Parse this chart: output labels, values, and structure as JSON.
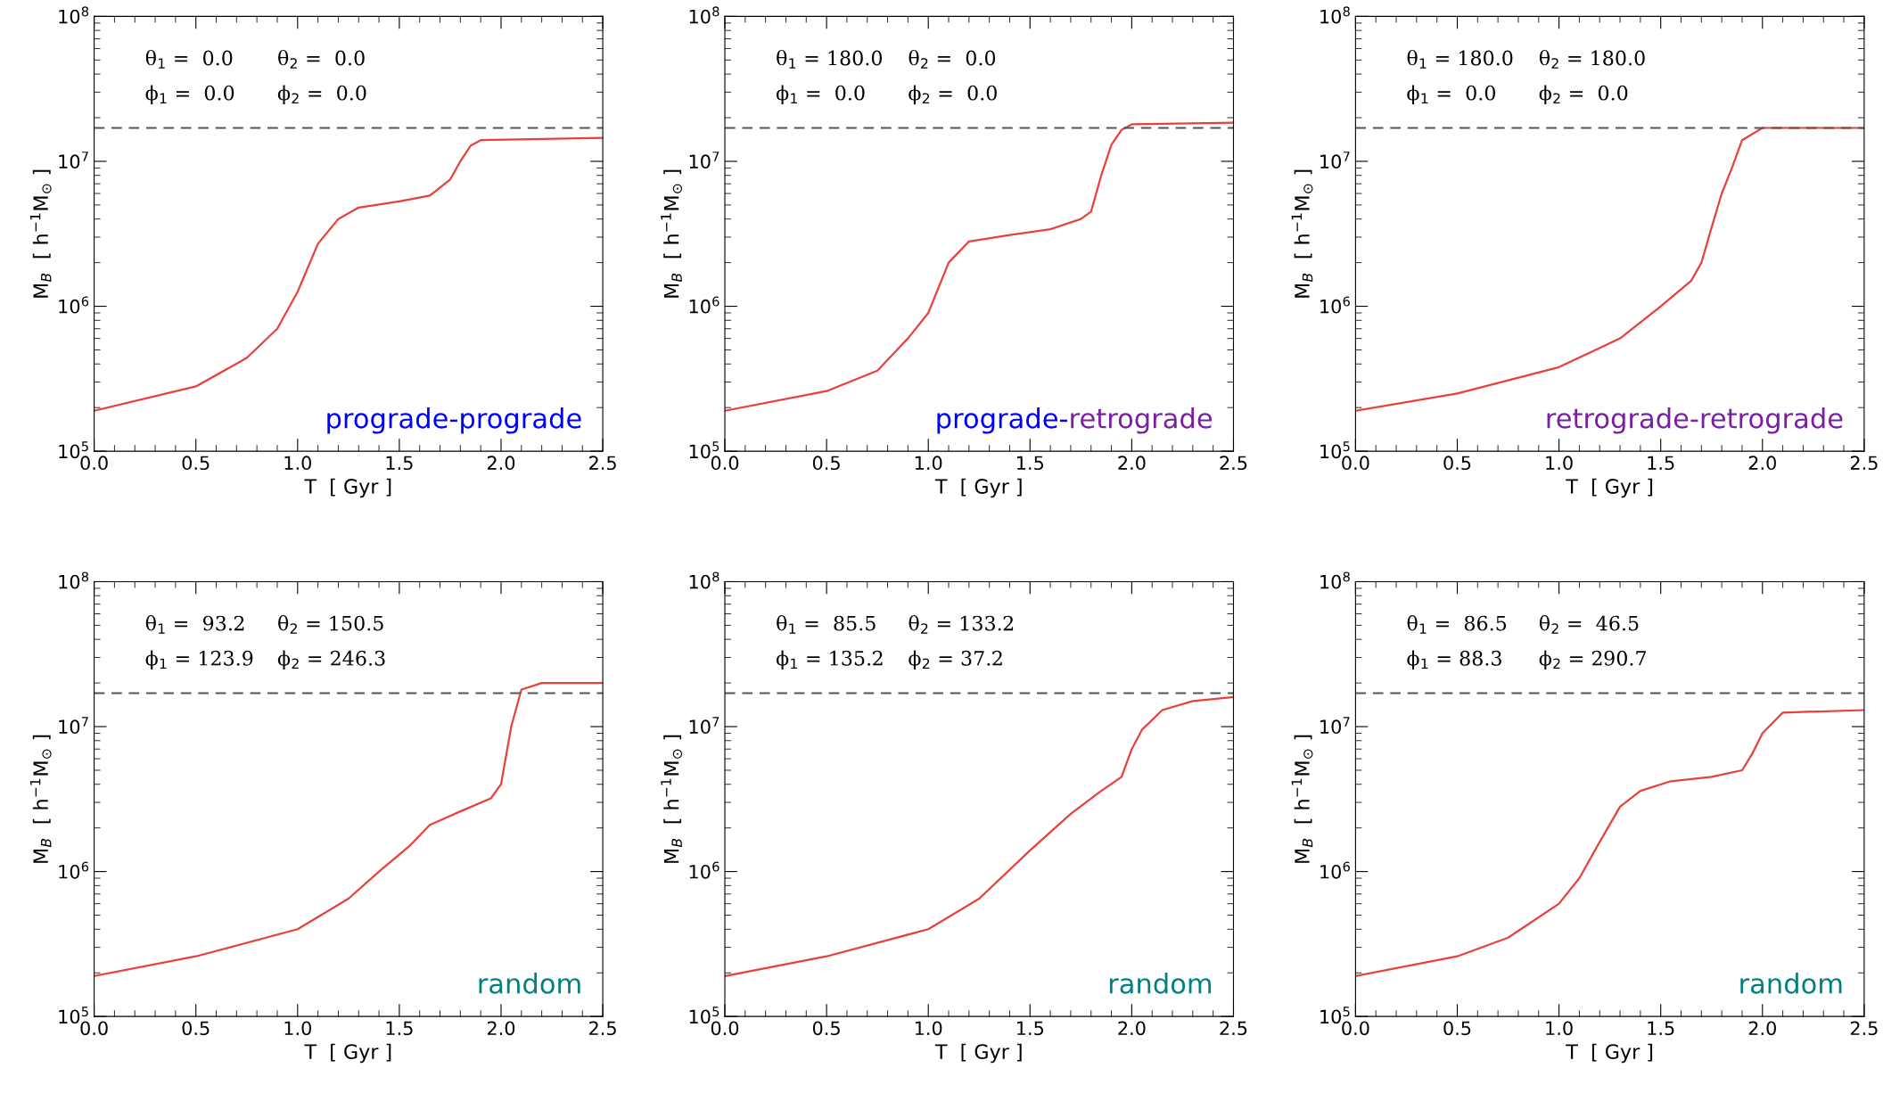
{
  "chart_data": [
    {
      "type": "line",
      "xlabel": "T  [ Gyr ]",
      "ylabel": "M$_{B}$  [ h$^{−1}$M$_{⊙}$ ]",
      "log": "y",
      "xlim": [
        0,
        2.5
      ],
      "ylim": [
        100000,
        100000000
      ],
      "xticks": [
        {
          "value": 0,
          "label": "0.0"
        },
        0.5,
        {
          "value": 1,
          "label": "1.0"
        },
        1.5,
        {
          "value": 2,
          "label": "2.0"
        },
        2.5
      ],
      "yticks": [
        {
          "value": 100000,
          "label": "10$^{5}$"
        },
        {
          "value": 1000000,
          "label": "10$^{6}$"
        },
        {
          "value": 10000000,
          "label": "10$^{7}$"
        },
        {
          "value": 100000000,
          "label": "10$^{8}$"
        }
      ],
      "grid": false,
      "legend": false,
      "x": [
        0,
        0.5,
        0.75,
        0.9,
        1.0,
        1.1,
        1.2,
        1.3,
        1.5,
        1.65,
        1.75,
        1.8,
        1.85,
        1.9,
        2.5
      ],
      "series": [
        {
          "color": "#e8413a",
          "values": [
            190000,
            280000,
            440000,
            700000,
            1260000,
            2700000,
            4000000,
            4800000,
            5300000,
            5800000,
            7500000,
            10000000,
            12800000,
            14000000,
            14500000
          ]
        }
      ],
      "ref_lines": [
        {
          "axis": "y",
          "value": 17000000,
          "color": "#555555",
          "line_style": "dashed"
        }
      ],
      "annotations": [
        "θ$_{1}$ =  0.0",
        "θ$_{2}$ =  0.0",
        "ϕ$_{1}$ =  0.0",
        "ϕ$_{2}$ =  0.0",
        "prograde-prograde"
      ]
    },
    {
      "type": "line",
      "xlabel": "T  [ Gyr ]",
      "ylabel": "M$_{B}$  [ h$^{−1}$M$_{⊙}$ ]",
      "log": "y",
      "xlim": [
        0,
        2.5
      ],
      "ylim": [
        100000,
        100000000
      ],
      "xticks": [
        {
          "value": 0,
          "label": "0.0"
        },
        0.5,
        {
          "value": 1,
          "label": "1.0"
        },
        1.5,
        {
          "value": 2,
          "label": "2.0"
        },
        2.5
      ],
      "yticks": [
        {
          "value": 100000,
          "label": "10$^{5}$"
        },
        {
          "value": 1000000,
          "label": "10$^{6}$"
        },
        {
          "value": 10000000,
          "label": "10$^{7}$"
        },
        {
          "value": 100000000,
          "label": "10$^{8}$"
        }
      ],
      "grid": false,
      "legend": false,
      "x": [
        0,
        0.5,
        0.75,
        0.9,
        1.0,
        1.1,
        1.2,
        1.4,
        1.6,
        1.75,
        1.8,
        1.85,
        1.9,
        1.95,
        2.0,
        2.5
      ],
      "series": [
        {
          "color": "#e8413a",
          "values": [
            190000,
            260000,
            360000,
            600000,
            900000,
            2000000,
            2800000,
            3100000,
            3400000,
            4000000,
            4500000,
            8000000,
            13000000,
            16500000,
            18000000,
            18500000
          ]
        }
      ],
      "ref_lines": [
        {
          "axis": "y",
          "value": 17000000,
          "color": "#555555",
          "line_style": "dashed"
        }
      ],
      "annotations": [
        "θ$_{1}$ = 180.0",
        "θ$_{2}$ =  0.0",
        "ϕ$_{1}$ =  0.0",
        "ϕ$_{2}$ =  0.0",
        "prograde-",
        "retrograde"
      ]
    },
    {
      "type": "line",
      "xlabel": "T  [ Gyr ]",
      "ylabel": "M$_{B}$  [ h$^{−1}$M$_{⊙}$ ]",
      "log": "y",
      "xlim": [
        0,
        2.5
      ],
      "ylim": [
        100000,
        100000000
      ],
      "xticks": [
        {
          "value": 0,
          "label": "0.0"
        },
        0.5,
        {
          "value": 1,
          "label": "1.0"
        },
        1.5,
        {
          "value": 2,
          "label": "2.0"
        },
        2.5
      ],
      "yticks": [
        {
          "value": 100000,
          "label": "10$^{5}$"
        },
        {
          "value": 1000000,
          "label": "10$^{6}$"
        },
        {
          "value": 10000000,
          "label": "10$^{7}$"
        },
        {
          "value": 100000000,
          "label": "10$^{8}$"
        }
      ],
      "grid": false,
      "legend": false,
      "x": [
        0,
        0.5,
        1.0,
        1.3,
        1.5,
        1.65,
        1.7,
        1.75,
        1.8,
        1.85,
        1.9,
        2.0,
        2.5
      ],
      "series": [
        {
          "color": "#e8413a",
          "values": [
            190000,
            250000,
            380000,
            600000,
            1000000,
            1500000,
            2000000,
            3500000,
            6000000,
            9000000,
            14000000,
            17000000,
            17000000
          ]
        }
      ],
      "ref_lines": [
        {
          "axis": "y",
          "value": 17000000,
          "color": "#555555",
          "line_style": "dashed"
        }
      ],
      "annotations": [
        "θ$_{1}$ = 180.0",
        "θ$_{2}$ = 180.0",
        "ϕ$_{1}$ =  0.0",
        "ϕ$_{2}$ =  0.0",
        "retrograde-retrograde"
      ]
    },
    {
      "type": "line",
      "xlabel": "T  [ Gyr ]",
      "ylabel": "M$_{B}$  [ h$^{−1}$M$_{⊙}$ ]",
      "log": "y",
      "xlim": [
        0,
        2.5
      ],
      "ylim": [
        100000,
        100000000
      ],
      "xticks": [
        {
          "value": 0,
          "label": "0.0"
        },
        0.5,
        {
          "value": 1,
          "label": "1.0"
        },
        1.5,
        {
          "value": 2,
          "label": "2.0"
        },
        2.5
      ],
      "yticks": [
        {
          "value": 100000,
          "label": "10$^{5}$"
        },
        {
          "value": 1000000,
          "label": "10$^{6}$"
        },
        {
          "value": 10000000,
          "label": "10$^{7}$"
        },
        {
          "value": 100000000,
          "label": "10$^{8}$"
        }
      ],
      "grid": false,
      "legend": false,
      "x": [
        0,
        0.5,
        1.0,
        1.25,
        1.4,
        1.55,
        1.65,
        1.8,
        1.95,
        2.0,
        2.05,
        2.1,
        2.2,
        2.5
      ],
      "series": [
        {
          "color": "#e8413a",
          "values": [
            190000,
            260000,
            400000,
            650000,
            1000000,
            1500000,
            2100000,
            2600000,
            3200000,
            4000000,
            10000000,
            18000000,
            20000000,
            20000000
          ]
        }
      ],
      "ref_lines": [
        {
          "axis": "y",
          "value": 17000000,
          "color": "#555555",
          "line_style": "dashed"
        }
      ],
      "annotations": [
        "θ$_{1}$ =  93.2",
        "θ$_{2}$ = 150.5",
        "ϕ$_{1}$ = 123.9",
        "ϕ$_{2}$ = 246.3",
        "random"
      ]
    },
    {
      "type": "line",
      "xlabel": "T  [ Gyr ]",
      "ylabel": "M$_{B}$  [ h$^{−1}$M$_{⊙}$ ]",
      "log": "y",
      "xlim": [
        0,
        2.5
      ],
      "ylim": [
        100000,
        100000000
      ],
      "xticks": [
        {
          "value": 0,
          "label": "0.0"
        },
        0.5,
        {
          "value": 1,
          "label": "1.0"
        },
        1.5,
        {
          "value": 2,
          "label": "2.0"
        },
        2.5
      ],
      "yticks": [
        {
          "value": 100000,
          "label": "10$^{5}$"
        },
        {
          "value": 1000000,
          "label": "10$^{6}$"
        },
        {
          "value": 10000000,
          "label": "10$^{7}$"
        },
        {
          "value": 100000000,
          "label": "10$^{8}$"
        }
      ],
      "grid": false,
      "legend": false,
      "x": [
        0,
        0.5,
        1.0,
        1.25,
        1.5,
        1.7,
        1.85,
        1.95,
        2.0,
        2.05,
        2.15,
        2.3,
        2.5
      ],
      "series": [
        {
          "color": "#e8413a",
          "values": [
            190000,
            260000,
            400000,
            650000,
            1400000,
            2500000,
            3600000,
            4500000,
            7000000,
            9500000,
            13000000,
            15000000,
            16000000
          ]
        }
      ],
      "ref_lines": [
        {
          "axis": "y",
          "value": 17000000,
          "color": "#555555",
          "line_style": "dashed"
        }
      ],
      "annotations": [
        "θ$_{1}$ =  85.5",
        "θ$_{2}$ = 133.2",
        "ϕ$_{1}$ = 135.2",
        "ϕ$_{2}$ = 37.2",
        "random"
      ]
    },
    {
      "type": "line",
      "xlabel": "T  [ Gyr ]",
      "ylabel": "M$_{B}$  [ h$^{−1}$M$_{⊙}$ ]",
      "log": "y",
      "xlim": [
        0,
        2.5
      ],
      "ylim": [
        100000,
        100000000
      ],
      "xticks": [
        {
          "value": 0,
          "label": "0.0"
        },
        0.5,
        {
          "value": 1,
          "label": "1.0"
        },
        1.5,
        {
          "value": 2,
          "label": "2.0"
        },
        2.5
      ],
      "yticks": [
        {
          "value": 100000,
          "label": "10$^{5}$"
        },
        {
          "value": 1000000,
          "label": "10$^{6}$"
        },
        {
          "value": 10000000,
          "label": "10$^{7}$"
        },
        {
          "value": 100000000,
          "label": "10$^{8}$"
        }
      ],
      "grid": false,
      "legend": false,
      "x": [
        0,
        0.5,
        0.75,
        1.0,
        1.1,
        1.2,
        1.3,
        1.4,
        1.55,
        1.75,
        1.9,
        1.95,
        2.0,
        2.1,
        2.5
      ],
      "series": [
        {
          "color": "#e8413a",
          "values": [
            190000,
            260000,
            350000,
            600000,
            900000,
            1600000,
            2800000,
            3600000,
            4200000,
            4500000,
            5000000,
            6500000,
            9000000,
            12500000,
            13000000
          ]
        }
      ],
      "ref_lines": [
        {
          "axis": "y",
          "value": 17000000,
          "color": "#555555",
          "line_style": "dashed"
        }
      ],
      "annotations": [
        "θ$_{1}$ =  86.5",
        "θ$_{2}$ =  46.5",
        "ϕ$_{1}$ = 88.3",
        "ϕ$_{2}$ = 290.7",
        "random"
      ]
    }
  ]
}
